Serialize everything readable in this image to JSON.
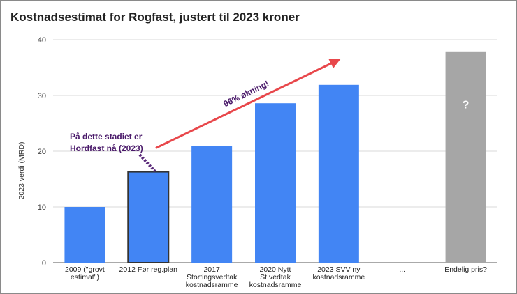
{
  "chart_data": {
    "type": "bar",
    "title": "Kostnadsestimat for Rogfast, justert til 2023 kroner",
    "xlabel": "",
    "ylabel": "2023 verdi (MRD)",
    "ylim": [
      0,
      40
    ],
    "yticks": [
      0,
      10,
      20,
      30,
      40
    ],
    "grid": true,
    "categories": [
      [
        "2009 (\"grovt",
        "estimat\")"
      ],
      [
        "2012 Før reg.plan"
      ],
      [
        "2017",
        "Stortingsvedtak",
        "kostnadsramme"
      ],
      [
        "2020 Nytt",
        "St.vedtak",
        "kostnadsramme"
      ],
      [
        "2023 SVV ny",
        "kostnadsramme"
      ],
      [
        "..."
      ],
      [
        "Endelig pris?"
      ]
    ],
    "values": [
      10,
      16.3,
      20.9,
      28.6,
      31.9,
      null,
      37.9
    ],
    "bar_colors": [
      "#4285f4",
      "#4285f4",
      "#4285f4",
      "#4285f4",
      "#4285f4",
      null,
      "#a6a6a6"
    ],
    "highlight_index": 1,
    "highlight_outline": "#333333",
    "bar_labels": [
      "",
      "",
      "",
      "",
      "",
      "",
      "?"
    ],
    "annotations": {
      "hordfast_lines": [
        "På dette stadiet er",
        "Hordfast nå (2023)"
      ],
      "increase": "96% økning!"
    },
    "colors": {
      "bar": "#4285f4",
      "unknown_bar": "#a6a6a6",
      "arrow": "#e8474b",
      "annotation_text": "#4a1a6a",
      "dotted_line": "#5b2a7a",
      "grid": "#d9d9d9"
    }
  }
}
